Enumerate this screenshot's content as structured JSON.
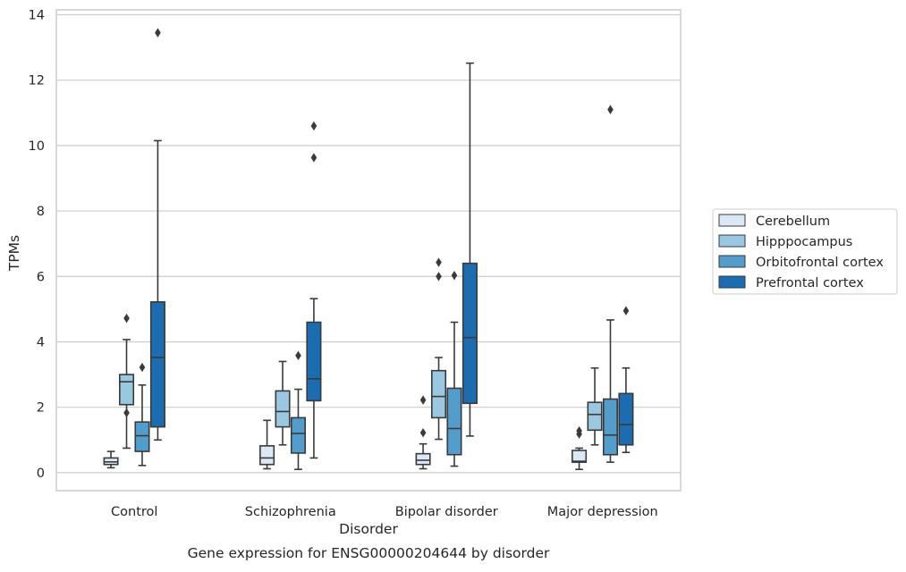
{
  "chart_data": {
    "type": "box",
    "title": "Gene expression for ENSG00000204644 by disorder",
    "xlabel": "Disorder",
    "ylabel": "TPMs",
    "ylim": [
      -0.55,
      14.15
    ],
    "yticks": [
      0,
      2,
      4,
      6,
      8,
      10,
      12,
      14
    ],
    "grid": "horizontal",
    "legend_position": "right",
    "categories": [
      "Control",
      "Schizophrenia",
      "Bipolar disorder",
      "Major depression"
    ],
    "series": [
      {
        "name": "Cerebellum",
        "color": "#dbe9f6",
        "boxes": [
          {
            "whisker_low": 0.15,
            "q1": 0.25,
            "median": 0.33,
            "q3": 0.45,
            "whisker_high": 0.65,
            "outliers": []
          },
          {
            "whisker_low": 0.12,
            "q1": 0.25,
            "median": 0.45,
            "q3": 0.82,
            "whisker_high": 1.6,
            "outliers": []
          },
          {
            "whisker_low": 0.12,
            "q1": 0.25,
            "median": 0.38,
            "q3": 0.58,
            "whisker_high": 0.88,
            "outliers": [
              1.22,
              2.22
            ]
          },
          {
            "whisker_low": 0.1,
            "q1": 0.32,
            "median": 0.35,
            "q3": 0.68,
            "whisker_high": 0.75,
            "outliers": [
              1.18,
              1.28
            ]
          }
        ]
      },
      {
        "name": "Hipppocampus",
        "color": "#9ac8e0",
        "boxes": [
          {
            "whisker_low": 0.75,
            "q1": 2.08,
            "median": 2.78,
            "q3": 3.0,
            "whisker_high": 4.07,
            "outliers": [
              1.83,
              4.72
            ]
          },
          {
            "whisker_low": 0.85,
            "q1": 1.4,
            "median": 1.87,
            "q3": 2.5,
            "whisker_high": 3.4,
            "outliers": []
          },
          {
            "whisker_low": 1.02,
            "q1": 1.68,
            "median": 2.33,
            "q3": 3.12,
            "whisker_high": 3.52,
            "outliers": [
              6.0,
              6.43
            ]
          },
          {
            "whisker_low": 0.85,
            "q1": 1.3,
            "median": 1.78,
            "q3": 2.15,
            "whisker_high": 3.2,
            "outliers": []
          }
        ]
      },
      {
        "name": "Orbitofrontal cortex",
        "color": "#529dcc",
        "boxes": [
          {
            "whisker_low": 0.22,
            "q1": 0.65,
            "median": 1.13,
            "q3": 1.55,
            "whisker_high": 2.68,
            "outliers": [
              3.22
            ]
          },
          {
            "whisker_low": 0.1,
            "q1": 0.6,
            "median": 1.2,
            "q3": 1.68,
            "whisker_high": 2.55,
            "outliers": [
              3.58
            ]
          },
          {
            "whisker_low": 0.2,
            "q1": 0.55,
            "median": 1.35,
            "q3": 2.58,
            "whisker_high": 4.6,
            "outliers": [
              6.03
            ]
          },
          {
            "whisker_low": 0.32,
            "q1": 0.55,
            "median": 1.15,
            "q3": 2.25,
            "whisker_high": 4.67,
            "outliers": [
              11.1
            ]
          }
        ]
      },
      {
        "name": "Prefrontal cortex",
        "color": "#1c6cb1",
        "boxes": [
          {
            "whisker_low": 1.0,
            "q1": 1.4,
            "median": 3.52,
            "q3": 5.22,
            "whisker_high": 10.15,
            "outliers": [
              13.45
            ]
          },
          {
            "whisker_low": 0.45,
            "q1": 2.2,
            "median": 2.87,
            "q3": 4.6,
            "whisker_high": 5.32,
            "outliers": [
              9.63,
              10.6
            ]
          },
          {
            "whisker_low": 1.12,
            "q1": 2.12,
            "median": 4.13,
            "q3": 6.4,
            "whisker_high": 12.52,
            "outliers": []
          },
          {
            "whisker_low": 0.62,
            "q1": 0.85,
            "median": 1.47,
            "q3": 2.42,
            "whisker_high": 3.2,
            "outliers": [
              4.95
            ]
          }
        ]
      }
    ]
  }
}
